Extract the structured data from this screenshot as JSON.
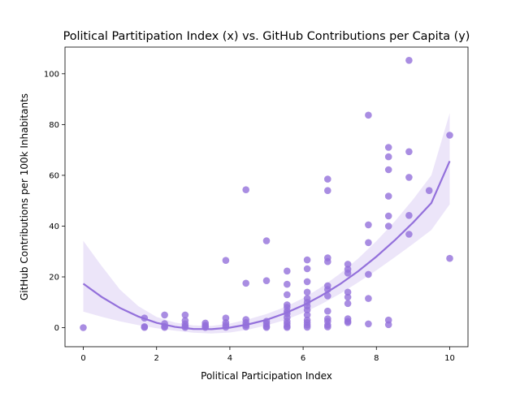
{
  "chart_data": {
    "type": "scatter",
    "title": "Political Partitipation Index (x) vs. GitHub Contributions per Capita (y)",
    "xlabel": "Political Participation Index",
    "ylabel": "GitHub Contributions per 100k Inhabitants",
    "xlim": [
      -0.5,
      10.5
    ],
    "ylim": [
      -7.5,
      110.5
    ],
    "xticks": [
      0,
      2,
      4,
      6,
      8,
      10
    ],
    "yticks": [
      0,
      20,
      40,
      60,
      80,
      100
    ],
    "grid": false,
    "legend": "none",
    "colors": {
      "points": "#9370DB",
      "line": "#9370DB",
      "band": "#9370DB"
    },
    "points": [
      [
        0,
        0
      ],
      [
        1.67,
        3.8
      ],
      [
        1.67,
        0.4
      ],
      [
        1.67,
        0.1
      ],
      [
        2.22,
        5.0
      ],
      [
        2.22,
        1.6
      ],
      [
        2.22,
        0.5
      ],
      [
        2.22,
        0.1
      ],
      [
        2.78,
        5.0
      ],
      [
        2.78,
        2.8
      ],
      [
        2.78,
        1.5
      ],
      [
        2.78,
        0.6
      ],
      [
        2.78,
        0.1
      ],
      [
        3.33,
        1.8
      ],
      [
        3.33,
        1.0
      ],
      [
        3.33,
        0.5
      ],
      [
        3.33,
        0.1
      ],
      [
        3.89,
        26.5
      ],
      [
        3.89,
        3.8
      ],
      [
        3.89,
        2.0
      ],
      [
        3.89,
        1.0
      ],
      [
        3.89,
        0.2
      ],
      [
        4.44,
        54.3
      ],
      [
        4.44,
        17.5
      ],
      [
        4.44,
        3.2
      ],
      [
        4.44,
        2.0
      ],
      [
        4.44,
        1.0
      ],
      [
        4.44,
        0.3
      ],
      [
        5.0,
        34.2
      ],
      [
        5.0,
        18.5
      ],
      [
        5.0,
        2.5
      ],
      [
        5.0,
        1.5
      ],
      [
        5.0,
        0.5
      ],
      [
        5.0,
        0.1
      ],
      [
        5.56,
        22.3
      ],
      [
        5.56,
        17.1
      ],
      [
        5.56,
        13.0
      ],
      [
        5.56,
        9.0
      ],
      [
        5.56,
        8.0
      ],
      [
        5.56,
        6.5
      ],
      [
        5.56,
        5.5
      ],
      [
        5.56,
        4.0
      ],
      [
        5.56,
        2.5
      ],
      [
        5.56,
        1.5
      ],
      [
        5.56,
        0.5
      ],
      [
        5.56,
        0.1
      ],
      [
        6.11,
        26.7
      ],
      [
        6.11,
        23.2
      ],
      [
        6.11,
        18.1
      ],
      [
        6.11,
        14.0
      ],
      [
        6.11,
        11.5
      ],
      [
        6.11,
        10.0
      ],
      [
        6.11,
        8.5
      ],
      [
        6.11,
        7.0
      ],
      [
        6.11,
        5.0
      ],
      [
        6.11,
        3.0
      ],
      [
        6.11,
        2.0
      ],
      [
        6.11,
        1.0
      ],
      [
        6.11,
        0.2
      ],
      [
        6.67,
        58.5
      ],
      [
        6.67,
        54.0
      ],
      [
        6.67,
        27.5
      ],
      [
        6.67,
        26.0
      ],
      [
        6.67,
        16.5
      ],
      [
        6.67,
        15.0
      ],
      [
        6.67,
        12.5
      ],
      [
        6.67,
        6.5
      ],
      [
        6.67,
        3.5
      ],
      [
        6.67,
        2.5
      ],
      [
        6.67,
        1.0
      ],
      [
        6.67,
        0.3
      ],
      [
        7.22,
        25.0
      ],
      [
        7.22,
        23.0
      ],
      [
        7.22,
        21.5
      ],
      [
        7.22,
        14.0
      ],
      [
        7.22,
        12.0
      ],
      [
        7.22,
        9.5
      ],
      [
        7.22,
        3.5
      ],
      [
        7.22,
        2.5
      ],
      [
        7.22,
        2.0
      ],
      [
        7.78,
        83.7
      ],
      [
        7.78,
        40.5
      ],
      [
        7.78,
        33.5
      ],
      [
        7.78,
        21.0
      ],
      [
        7.78,
        11.5
      ],
      [
        7.78,
        1.5
      ],
      [
        8.33,
        71.0
      ],
      [
        8.33,
        67.3
      ],
      [
        8.33,
        62.2
      ],
      [
        8.33,
        51.8
      ],
      [
        8.33,
        44.0
      ],
      [
        8.33,
        40.0
      ],
      [
        8.33,
        3.0
      ],
      [
        8.33,
        1.2
      ],
      [
        8.89,
        105.3
      ],
      [
        8.89,
        69.3
      ],
      [
        8.89,
        59.2
      ],
      [
        8.89,
        44.2
      ],
      [
        8.89,
        36.8
      ],
      [
        9.44,
        54.0
      ],
      [
        10.0,
        75.8
      ],
      [
        10.0,
        27.3
      ]
    ],
    "fit": {
      "x": [
        0,
        0.5,
        1,
        1.5,
        2,
        2.5,
        3,
        3.5,
        4,
        4.5,
        5,
        5.5,
        6,
        6.5,
        7,
        7.5,
        8,
        8.5,
        9,
        9.5,
        10
      ],
      "y": [
        17.3,
        12.1,
        7.8,
        4.4,
        1.9,
        0.3,
        -0.5,
        -0.6,
        0.0,
        1.3,
        3.1,
        5.6,
        8.8,
        12.6,
        17.1,
        22.2,
        28.0,
        34.4,
        41.4,
        49.1,
        65.6
      ],
      "lower": [
        6.3,
        4.3,
        2.5,
        1.0,
        -0.2,
        -1.2,
        -2.0,
        -2.3,
        -1.9,
        -0.8,
        0.9,
        3.0,
        5.8,
        9.3,
        13.3,
        17.8,
        22.6,
        27.7,
        33.0,
        38.5,
        48.6
      ],
      "upper": [
        34.2,
        24.3,
        15.0,
        8.5,
        4.2,
        2.0,
        0.9,
        0.7,
        1.6,
        3.3,
        5.4,
        8.1,
        11.6,
        16.0,
        21.2,
        27.2,
        34.1,
        41.8,
        50.5,
        60.0,
        84.5
      ]
    }
  }
}
